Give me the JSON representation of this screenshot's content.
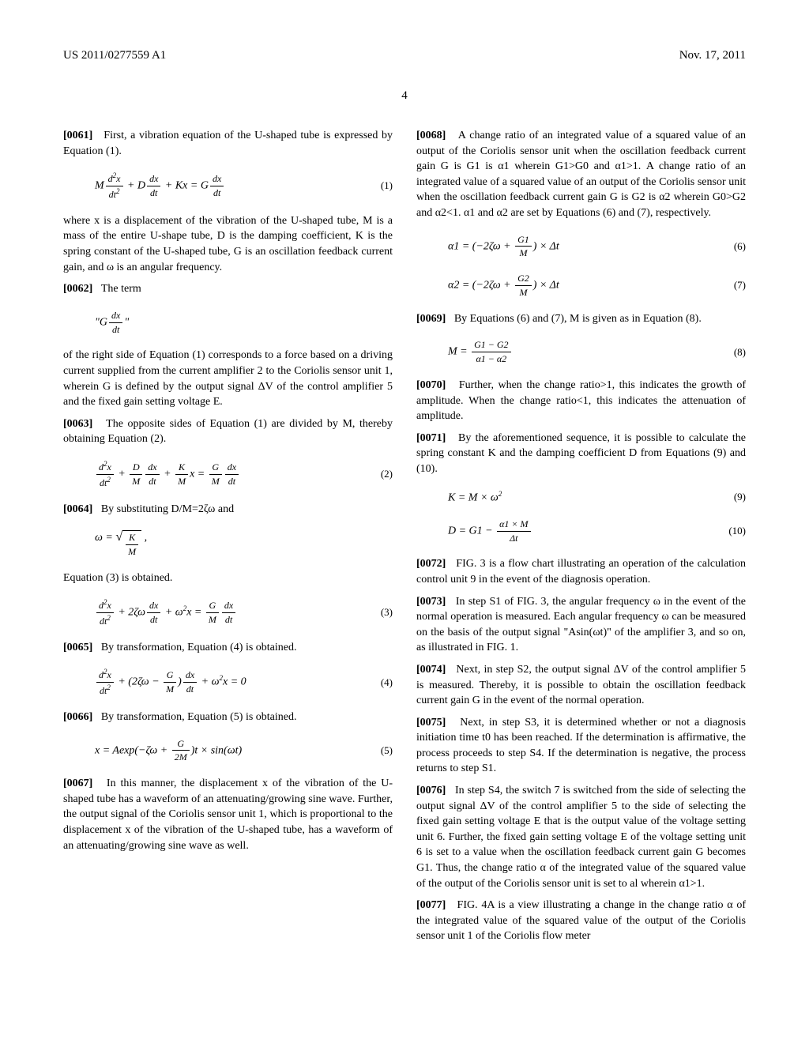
{
  "header": {
    "patent_number": "US 2011/0277559 A1",
    "date": "Nov. 17, 2011",
    "page_number": "4"
  },
  "left_column": {
    "p0061": {
      "num": "[0061]",
      "text": "First, a vibration equation of the U-shaped tube is expressed by Equation (1)."
    },
    "eq1_num": "(1)",
    "p0061_after": "where x is a displacement of the vibration of the U-shaped tube, M is a mass of the entire U-shape tube, D is the damping coefficient, K is the spring constant of the U-shaped tube, G is an oscillation feedback current gain, and ω is an angular frequency.",
    "p0062": {
      "num": "[0062]",
      "text": "The term"
    },
    "p0062_after": "of the right side of Equation (1) corresponds to a force based on a driving current supplied from the current amplifier 2 to the Coriolis sensor unit 1, wherein G is defined by the output signal ΔV of the control amplifier 5 and the fixed gain setting voltage E.",
    "p0063": {
      "num": "[0063]",
      "text": "The opposite sides of Equation (1) are divided by M, thereby obtaining Equation (2)."
    },
    "eq2_num": "(2)",
    "p0064": {
      "num": "[0064]",
      "text": "By substituting D/M=2ζω and"
    },
    "p0064_after": "Equation (3) is obtained.",
    "eq3_num": "(3)",
    "p0065": {
      "num": "[0065]",
      "text": "By transformation, Equation (4) is obtained."
    },
    "eq4_num": "(4)",
    "p0066": {
      "num": "[0066]",
      "text": "By transformation, Equation (5) is obtained."
    },
    "eq5_num": "(5)",
    "p0067": {
      "num": "[0067]",
      "text": "In this manner, the displacement x of the vibration of the U-shaped tube has a waveform of an attenuating/growing sine wave. Further, the output signal of the Coriolis sensor unit 1, which is proportional to the displacement x of the vibration of the U-shaped tube, has a waveform of an attenuating/growing sine wave as well."
    }
  },
  "right_column": {
    "p0068": {
      "num": "[0068]",
      "text": "A change ratio of an integrated value of a squared value of an output of the Coriolis sensor unit when the oscillation feedback current gain G is G1 is α1 wherein G1>G0 and α1>1. A change ratio of an integrated value of a squared value of an output of the Coriolis sensor unit when the oscillation feedback current gain G is G2 is α2 wherein G0>G2 and α2<1. α1 and α2 are set by Equations (6) and (7), respectively."
    },
    "eq6_num": "(6)",
    "eq7_num": "(7)",
    "p0069": {
      "num": "[0069]",
      "text": "By Equations (6) and (7), M is given as in Equation (8)."
    },
    "eq8_num": "(8)",
    "p0070": {
      "num": "[0070]",
      "text": "Further, when the change ratio>1, this indicates the growth of amplitude. When the change ratio<1, this indicates the attenuation of amplitude."
    },
    "p0071": {
      "num": "[0071]",
      "text": "By the aforementioned sequence, it is possible to calculate the spring constant K and the damping coefficient D from Equations (9) and (10)."
    },
    "eq9_num": "(9)",
    "eq10_num": "(10)",
    "p0072": {
      "num": "[0072]",
      "text": "FIG. 3 is a flow chart illustrating an operation of the calculation control unit 9 in the event of the diagnosis operation."
    },
    "p0073": {
      "num": "[0073]",
      "text": "In step S1 of FIG. 3, the angular frequency ω in the event of the normal operation is measured. Each angular frequency ω can be measured on the basis of the output signal \"Asin(ωt)\" of the amplifier 3, and so on, as illustrated in FIG. 1."
    },
    "p0074": {
      "num": "[0074]",
      "text": "Next, in step S2, the output signal ΔV of the control amplifier 5 is measured. Thereby, it is possible to obtain the oscillation feedback current gain G in the event of the normal operation."
    },
    "p0075": {
      "num": "[0075]",
      "text": "Next, in step S3, it is determined whether or not a diagnosis initiation time t0 has been reached. If the determination is affirmative, the process proceeds to step S4. If the determination is negative, the process returns to step S1."
    },
    "p0076": {
      "num": "[0076]",
      "text": "In step S4, the switch 7 is switched from the side of selecting the output signal ΔV of the control amplifier 5 to the side of selecting the fixed gain setting voltage E that is the output value of the voltage setting unit 6. Further, the fixed gain setting voltage E of the voltage setting unit 6 is set to a value when the oscillation feedback current gain G becomes G1. Thus, the change ratio α of the integrated value of the squared value of the output of the Coriolis sensor unit is set to al wherein α1>1."
    },
    "p0077": {
      "num": "[0077]",
      "text": "FIG. 4A is a view illustrating a change in the change ratio α of the integrated value of the squared value of the output of the Coriolis sensor unit 1 of the Coriolis flow meter"
    }
  }
}
